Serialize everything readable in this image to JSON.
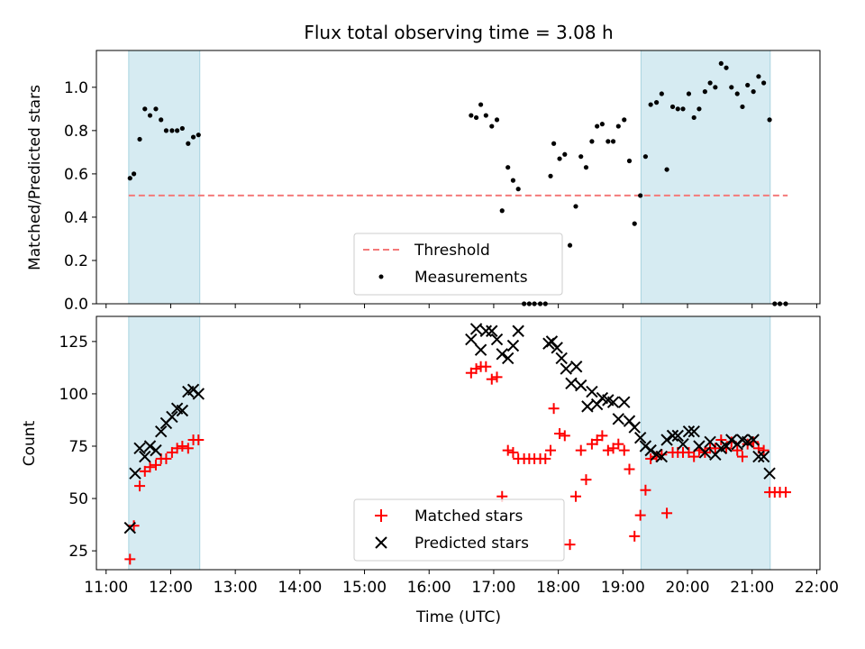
{
  "figure": {
    "title": "Flux total observing time = 3.08 h",
    "xlabel": "Time (UTC)",
    "x_ticks": [
      "11:00",
      "12:00",
      "13:00",
      "14:00",
      "15:00",
      "16:00",
      "17:00",
      "18:00",
      "19:00",
      "20:00",
      "21:00",
      "22:00"
    ]
  },
  "chart_data": [
    {
      "type": "scatter",
      "panel": "top",
      "ylabel": "Matched/Predicted stars",
      "xlim": [
        10.85,
        22.05
      ],
      "ylim": [
        0,
        1.17
      ],
      "y_ticks": [
        0.0,
        0.2,
        0.4,
        0.6,
        0.8,
        1.0
      ],
      "y_tick_labels": [
        "0.0",
        "0.2",
        "0.4",
        "0.6",
        "0.8",
        "1.0"
      ],
      "shaded_intervals": [
        [
          11.35,
          12.45
        ],
        [
          19.28,
          21.28
        ]
      ],
      "legend_position": "lower center",
      "threshold": {
        "name": "Threshold",
        "value": 0.5,
        "x_range": [
          11.35,
          21.55
        ],
        "color": "#f47a7a"
      },
      "series": [
        {
          "name": "Measurements",
          "color": "#000000",
          "x": [
            11.37,
            11.43,
            11.52,
            11.6,
            11.68,
            11.77,
            11.85,
            11.93,
            12.02,
            12.1,
            12.18,
            12.27,
            12.35,
            12.43,
            16.65,
            16.73,
            16.8,
            16.88,
            16.97,
            17.05,
            17.13,
            17.22,
            17.3,
            17.38,
            17.47,
            17.55,
            17.63,
            17.72,
            17.8,
            17.88,
            17.93,
            18.02,
            18.1,
            18.18,
            18.27,
            18.35,
            18.43,
            18.52,
            18.6,
            18.68,
            18.77,
            18.85,
            18.93,
            19.02,
            19.1,
            19.18,
            19.27,
            19.35,
            19.43,
            19.52,
            19.6,
            19.68,
            19.77,
            19.85,
            19.93,
            20.02,
            20.1,
            20.18,
            20.27,
            20.35,
            20.43,
            20.52,
            20.6,
            20.68,
            20.77,
            20.85,
            20.93,
            21.02,
            21.1,
            21.18,
            21.27,
            21.35,
            21.43,
            21.52
          ],
          "y": [
            0.58,
            0.6,
            0.76,
            0.9,
            0.87,
            0.9,
            0.85,
            0.8,
            0.8,
            0.8,
            0.81,
            0.74,
            0.77,
            0.78,
            0.87,
            0.86,
            0.92,
            0.87,
            0.82,
            0.85,
            0.43,
            0.63,
            0.57,
            0.53,
            0.0,
            0.0,
            0.0,
            0.0,
            0.0,
            0.59,
            0.74,
            0.67,
            0.69,
            0.27,
            0.45,
            0.68,
            0.63,
            0.75,
            0.82,
            0.83,
            0.75,
            0.75,
            0.82,
            0.85,
            0.66,
            0.37,
            0.5,
            0.68,
            0.92,
            0.93,
            0.97,
            0.62,
            0.91,
            0.9,
            0.9,
            0.97,
            0.86,
            0.9,
            0.98,
            1.02,
            1.0,
            1.11,
            1.09,
            1.0,
            0.97,
            0.91,
            1.01,
            0.98,
            1.05,
            1.02,
            0.85,
            0.0,
            0.0,
            0.0
          ]
        }
      ]
    },
    {
      "type": "scatter",
      "panel": "bottom",
      "ylabel": "Count",
      "xlim": [
        10.85,
        22.05
      ],
      "ylim": [
        16,
        137
      ],
      "y_ticks": [
        25,
        50,
        75,
        100,
        125
      ],
      "y_tick_labels": [
        "25",
        "50",
        "75",
        "100",
        "125"
      ],
      "shaded_intervals": [
        [
          11.35,
          12.45
        ],
        [
          19.28,
          21.28
        ]
      ],
      "legend_position": "lower center",
      "series": [
        {
          "name": "Matched stars",
          "color": "#ff0000",
          "marker": "+",
          "x": [
            11.37,
            11.43,
            11.52,
            11.6,
            11.68,
            11.77,
            11.85,
            11.93,
            12.02,
            12.1,
            12.18,
            12.27,
            12.35,
            12.43,
            16.65,
            16.73,
            16.8,
            16.88,
            16.97,
            17.05,
            17.13,
            17.22,
            17.3,
            17.38,
            17.47,
            17.55,
            17.63,
            17.72,
            17.8,
            17.88,
            17.93,
            18.02,
            18.1,
            18.18,
            18.27,
            18.35,
            18.43,
            18.52,
            18.6,
            18.68,
            18.77,
            18.85,
            18.93,
            19.02,
            19.1,
            19.18,
            19.27,
            19.35,
            19.43,
            19.52,
            19.6,
            19.68,
            19.77,
            19.85,
            19.93,
            20.02,
            20.1,
            20.18,
            20.27,
            20.35,
            20.43,
            20.52,
            20.6,
            20.68,
            20.77,
            20.85,
            20.93,
            21.02,
            21.1,
            21.18,
            21.27,
            21.35,
            21.43,
            21.52
          ],
          "y": [
            21,
            37,
            56,
            63,
            65,
            66,
            69,
            69,
            72,
            74,
            75,
            74,
            78,
            78,
            110,
            112,
            113,
            113,
            107,
            108,
            51,
            73,
            72,
            69,
            69,
            69,
            69,
            69,
            69,
            73,
            93,
            81,
            80,
            28,
            51,
            73,
            59,
            76,
            78,
            80,
            73,
            74,
            76,
            73,
            64,
            32,
            42,
            54,
            69,
            70,
            71,
            43,
            72,
            72,
            72,
            72,
            70,
            73,
            72,
            74,
            74,
            78,
            74,
            77,
            73,
            70,
            76,
            77,
            74,
            73,
            53,
            53,
            53,
            53
          ]
        },
        {
          "name": "Predicted stars",
          "color": "#000000",
          "marker": "x",
          "x": [
            11.37,
            11.45,
            11.52,
            11.6,
            11.68,
            11.77,
            11.85,
            11.93,
            12.02,
            12.1,
            12.18,
            12.27,
            12.35,
            12.43,
            16.65,
            16.73,
            16.8,
            16.88,
            16.97,
            17.05,
            17.13,
            17.22,
            17.3,
            17.38,
            17.85,
            17.9,
            17.98,
            18.05,
            18.12,
            18.2,
            18.28,
            18.35,
            18.45,
            18.52,
            18.6,
            18.68,
            18.77,
            18.85,
            18.93,
            19.02,
            19.1,
            19.18,
            19.27,
            19.35,
            19.43,
            19.52,
            19.6,
            19.68,
            19.77,
            19.85,
            19.93,
            20.02,
            20.1,
            20.18,
            20.27,
            20.35,
            20.43,
            20.52,
            20.6,
            20.68,
            20.77,
            20.85,
            20.93,
            21.02,
            21.1,
            21.18,
            21.27
          ],
          "y": [
            36,
            62,
            74,
            70,
            75,
            73,
            82,
            86,
            89,
            93,
            92,
            101,
            102,
            100,
            126,
            131,
            121,
            130,
            130,
            126,
            119,
            117,
            123,
            130,
            124,
            125,
            122,
            117,
            112,
            105,
            113,
            104,
            94,
            101,
            95,
            98,
            97,
            96,
            88,
            96,
            87,
            84,
            79,
            75,
            73,
            71,
            70,
            78,
            80,
            80,
            76,
            82,
            82,
            75,
            72,
            77,
            71,
            74,
            75,
            78,
            76,
            78,
            77,
            78,
            70,
            70,
            62
          ]
        }
      ]
    }
  ]
}
